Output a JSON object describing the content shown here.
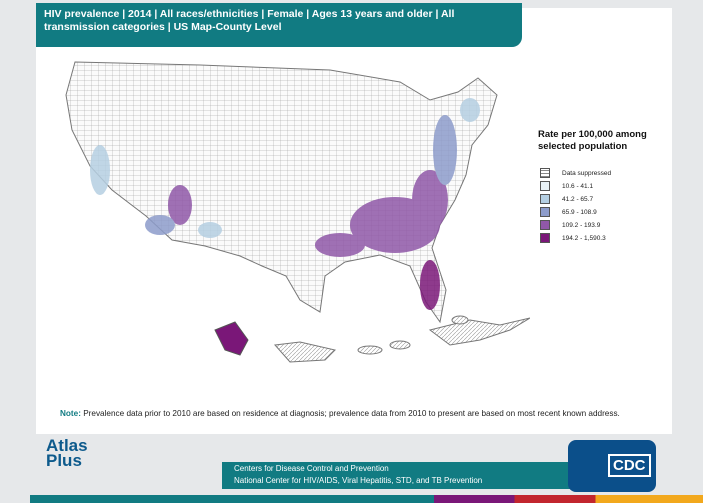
{
  "header": {
    "title": "HIV prevalence | 2014 | All races/ethnicities | Female | Ages 13 years and older | All transmission categories | US Map-County Level"
  },
  "legend": {
    "title": "Rate per 100,000 among selected population",
    "items": [
      {
        "label": "Data suppressed",
        "color": "#ffffff"
      },
      {
        "label": "10.6 - 41.1",
        "color": "#e8f1f6"
      },
      {
        "label": "41.2 - 65.7",
        "color": "#b5cfe2"
      },
      {
        "label": "65.9 - 108.9",
        "color": "#8d9ccb"
      },
      {
        "label": "109.2 - 193.9",
        "color": "#9058a8"
      },
      {
        "label": "194.2 - 1,590.3",
        "color": "#7a1778"
      }
    ]
  },
  "note": {
    "label": "Note:",
    "text": "Prevalence data prior to 2010 are based on residence at diagnosis; prevalence data from 2010 to present are based  on most recent known address."
  },
  "footer": {
    "line1": "Centers for Disease Control and Prevention",
    "line2": "National Center for HIV/AIDS, Viral Hepatitis, STD, and TB Prevention"
  },
  "logos": {
    "atlas": "Atlas",
    "plus": "Plus",
    "cdc": "CDC"
  }
}
